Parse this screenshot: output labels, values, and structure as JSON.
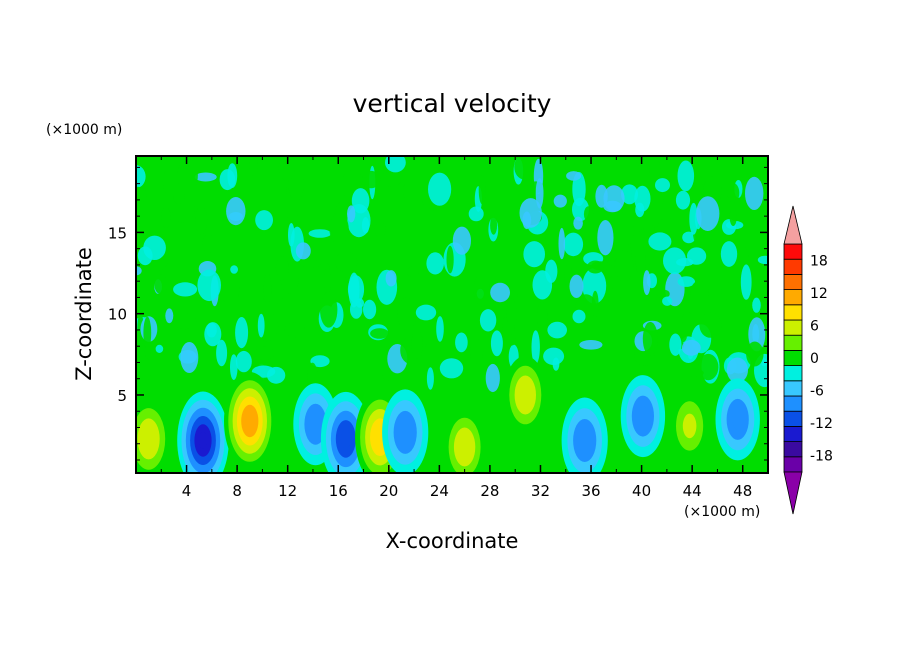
{
  "chart_data": {
    "type": "heatmap",
    "title": "vertical velocity",
    "xlabel": "X-coordinate",
    "ylabel": "Z-coordinate",
    "x_unit": "(×1000 m)",
    "y_unit": "(×1000 m)",
    "xlim": [
      0,
      50
    ],
    "ylim": [
      0.2,
      19.7
    ],
    "x_ticks": [
      4,
      8,
      12,
      16,
      20,
      24,
      28,
      32,
      36,
      40,
      44,
      48
    ],
    "y_ticks": [
      5,
      10,
      15
    ],
    "colorbar": {
      "levels": [
        -21,
        -18,
        -15,
        -12,
        -9,
        -6,
        -3,
        0,
        3,
        6,
        9,
        12,
        15,
        18,
        21
      ],
      "tick_labels": [
        "18",
        "12",
        "6",
        "0",
        "-6",
        "-12",
        "-18"
      ],
      "tick_values": [
        18,
        12,
        6,
        0,
        -6,
        -12,
        -18
      ],
      "colors": [
        "#6a00a8",
        "#3a0aa0",
        "#1a1ad0",
        "#0a50e6",
        "#1e90ff",
        "#38c8ff",
        "#00f0e0",
        "#00dd00",
        "#66f000",
        "#ccf000",
        "#ffe000",
        "#ffaa00",
        "#ff7000",
        "#ff3a00",
        "#ff0a0a"
      ],
      "extend_low_color": "#8a00a8",
      "extend_high_color": "#f4a0a0"
    },
    "features": [
      {
        "x": 1.0,
        "z": 2.3,
        "value": 8
      },
      {
        "x": 5.3,
        "z": 2.2,
        "value": -13
      },
      {
        "x": 9.0,
        "z": 3.4,
        "value": 13
      },
      {
        "x": 14.2,
        "z": 3.2,
        "value": -8
      },
      {
        "x": 16.6,
        "z": 2.3,
        "value": -11
      },
      {
        "x": 19.3,
        "z": 2.4,
        "value": 11
      },
      {
        "x": 21.3,
        "z": 2.7,
        "value": -9
      },
      {
        "x": 26.0,
        "z": 1.8,
        "value": 7
      },
      {
        "x": 30.8,
        "z": 5.0,
        "value": 7
      },
      {
        "x": 35.5,
        "z": 2.2,
        "value": -9
      },
      {
        "x": 40.1,
        "z": 3.7,
        "value": -8
      },
      {
        "x": 43.8,
        "z": 3.1,
        "value": 6
      },
      {
        "x": 47.6,
        "z": 3.5,
        "value": -8
      }
    ]
  }
}
